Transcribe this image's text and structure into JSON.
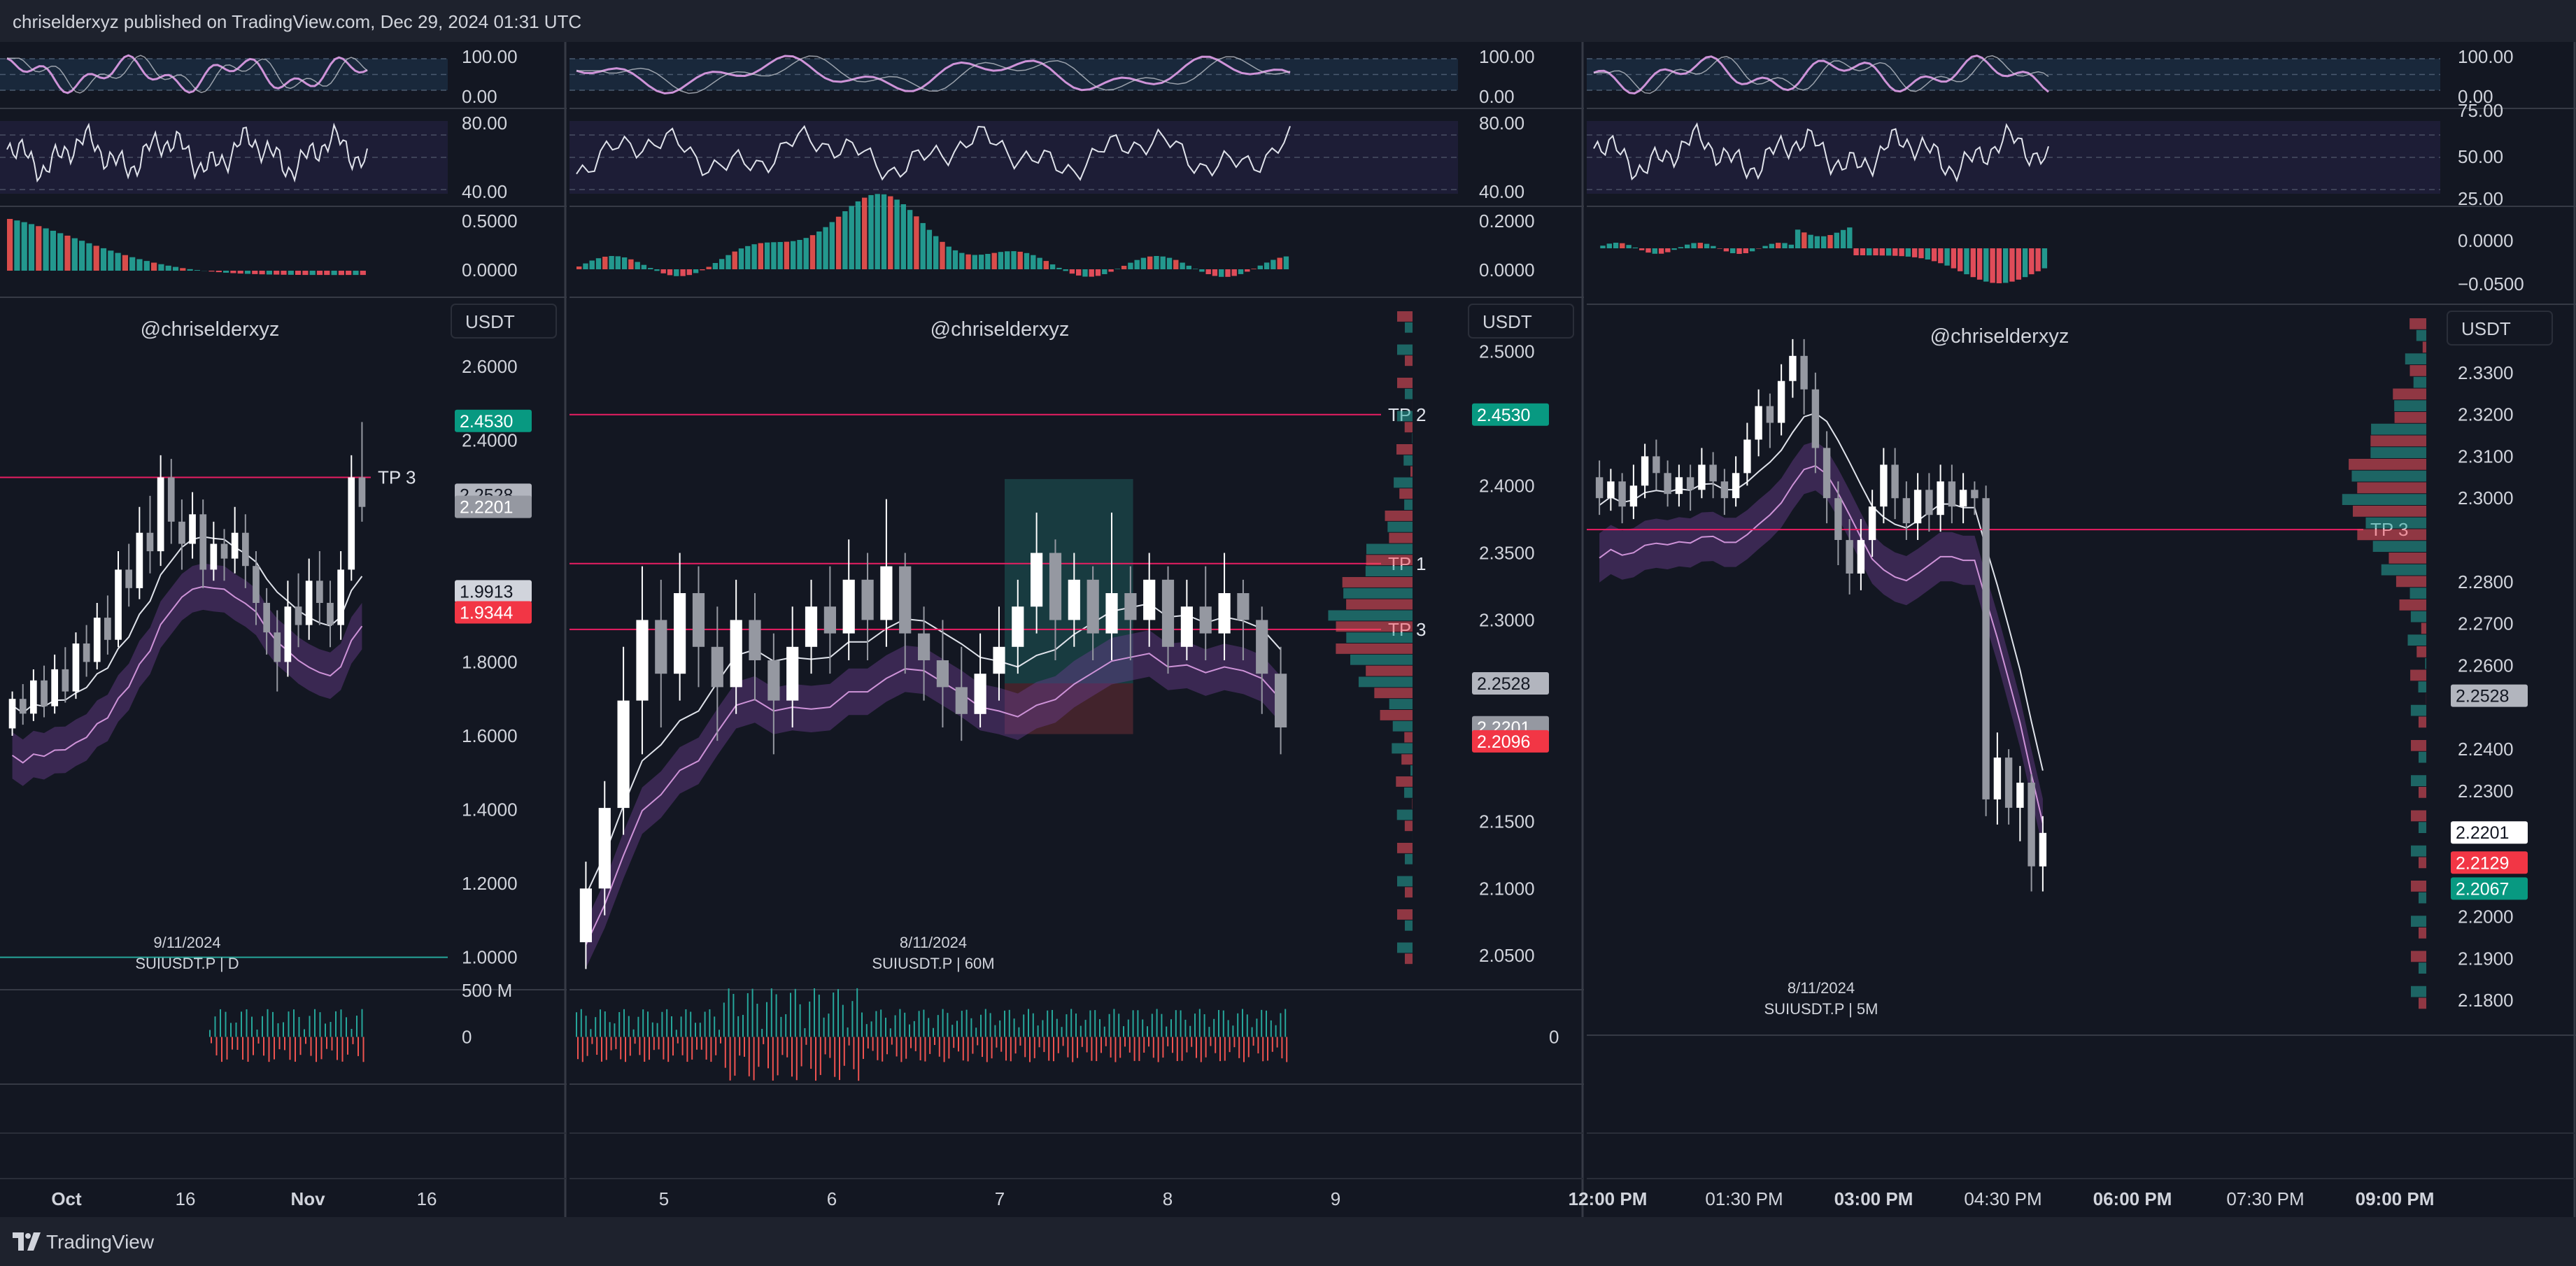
{
  "header": {
    "text": "chriselderxyz published on TradingView.com, Dec 29, 2024 01:31 UTC"
  },
  "footer": {
    "brand": "TradingView",
    "logo_icon": "tradingview-logo-icon"
  },
  "colors": {
    "background": "#131722",
    "header_bg": "#1e222d",
    "up": "#26a69a",
    "down": "#ef5350",
    "candle_white": "#ffffff",
    "candle_gray": "#9598a1",
    "tp_line": "#e91e63",
    "rsi_line": "#ce93d8",
    "band": "#6a3d8f",
    "grid": "#2a2e39",
    "text": "#d1d4dc"
  },
  "chart_data": [
    {
      "type": "candlestick",
      "symbol_label": "SUIUSDT.P | D",
      "watermark": "@chriselderxyz",
      "currency_button": "USDT",
      "date_marker": "9/11/2024",
      "x_ticks": [
        "Oct",
        "16",
        "Nov",
        "16"
      ],
      "y_ticks": [
        "2.6000",
        "2.4000",
        "1.8000",
        "1.6000",
        "1.4000",
        "1.2000",
        "1.0000"
      ],
      "ylim": [
        0.95,
        2.75
      ],
      "price_labels": [
        {
          "text": "2.4530",
          "value": 2.453,
          "color": "#089981"
        },
        {
          "text": "2.2528",
          "value": 2.2528,
          "color": "#b2b5be"
        },
        {
          "text": "2.2201",
          "value": 2.2201,
          "color": "#9598a1"
        },
        {
          "text": "1.9913",
          "value": 1.9913,
          "color": "#d1d4dc"
        },
        {
          "text": "1.9344",
          "value": 1.9344,
          "color": "#f23645"
        }
      ],
      "hlines": [
        {
          "label": "TP 3",
          "value": 2.3,
          "color": "#e91e63"
        },
        {
          "label": "",
          "value": 1.0,
          "color": "#26a69a"
        }
      ],
      "candles": [
        [
          1.62,
          1.7,
          1.6,
          1.72
        ],
        [
          1.7,
          1.66,
          1.63,
          1.74
        ],
        [
          1.66,
          1.75,
          1.64,
          1.78
        ],
        [
          1.75,
          1.68,
          1.65,
          1.79
        ],
        [
          1.68,
          1.78,
          1.66,
          1.82
        ],
        [
          1.78,
          1.72,
          1.69,
          1.84
        ],
        [
          1.72,
          1.85,
          1.7,
          1.88
        ],
        [
          1.85,
          1.8,
          1.76,
          1.9
        ],
        [
          1.8,
          1.92,
          1.78,
          1.96
        ],
        [
          1.92,
          1.86,
          1.82,
          1.98
        ],
        [
          1.86,
          2.05,
          1.84,
          2.1
        ],
        [
          2.05,
          2.0,
          1.95,
          2.12
        ],
        [
          2.0,
          2.15,
          1.97,
          2.22
        ],
        [
          2.15,
          2.1,
          2.04,
          2.25
        ],
        [
          2.1,
          2.3,
          2.06,
          2.36
        ],
        [
          2.3,
          2.18,
          2.12,
          2.35
        ],
        [
          2.18,
          2.12,
          2.05,
          2.24
        ],
        [
          2.12,
          2.2,
          2.08,
          2.26
        ],
        [
          2.2,
          2.05,
          2.0,
          2.24
        ],
        [
          2.05,
          2.12,
          2.02,
          2.18
        ],
        [
          2.12,
          2.08,
          2.02,
          2.16
        ],
        [
          2.08,
          2.15,
          2.04,
          2.22
        ],
        [
          2.15,
          2.06,
          2.0,
          2.2
        ],
        [
          2.06,
          1.96,
          1.9,
          2.1
        ],
        [
          1.96,
          1.88,
          1.82,
          2.0
        ],
        [
          1.88,
          1.8,
          1.72,
          1.94
        ],
        [
          1.8,
          1.95,
          1.76,
          2.02
        ],
        [
          1.95,
          1.9,
          1.84,
          2.04
        ],
        [
          1.9,
          2.02,
          1.86,
          2.08
        ],
        [
          2.02,
          1.96,
          1.9,
          2.1
        ],
        [
          1.96,
          1.9,
          1.84,
          2.02
        ],
        [
          1.9,
          2.05,
          1.86,
          2.1
        ],
        [
          2.05,
          2.3,
          2.02,
          2.36
        ],
        [
          2.3,
          2.22,
          2.18,
          2.45
        ]
      ],
      "indicator_ticks": {
        "rsi": [
          "100.00",
          "0.00"
        ],
        "stoch": [
          "80.00",
          "40.00"
        ],
        "macd": [
          "0.5000",
          "0.0000"
        ],
        "volume": [
          "500 M",
          "0"
        ]
      }
    },
    {
      "type": "candlestick",
      "symbol_label": "SUIUSDT.P | 60M",
      "watermark": "@chriselderxyz",
      "currency_button": "USDT",
      "date_marker": "8/11/2024",
      "x_ticks": [
        "5",
        "6",
        "7",
        "8",
        "9"
      ],
      "y_ticks": [
        "2.5000",
        "2.4000",
        "2.3500",
        "2.3000",
        "2.1500",
        "2.1000",
        "2.0500"
      ],
      "ylim": [
        2.035,
        2.53
      ],
      "price_labels": [
        {
          "text": "2.4530",
          "value": 2.453,
          "color": "#089981"
        },
        {
          "text": "2.2528",
          "value": 2.2528,
          "color": "#b2b5be"
        },
        {
          "text": "2.2201",
          "value": 2.2201,
          "color": "#9598a1"
        },
        {
          "text": "2.2096",
          "value": 2.2096,
          "color": "#f23645"
        }
      ],
      "hlines": [
        {
          "label": "TP 2",
          "value": 2.453,
          "color": "#e91e63"
        },
        {
          "label": "TP 1",
          "value": 2.342,
          "color": "#e91e63"
        },
        {
          "label": "TP 3",
          "value": 2.293,
          "color": "#e91e63"
        }
      ],
      "position": {
        "entry": 2.2528,
        "target": 2.405,
        "stop": 2.215
      },
      "candles": [
        [
          2.06,
          2.1,
          2.04,
          2.12
        ],
        [
          2.1,
          2.16,
          2.08,
          2.18
        ],
        [
          2.16,
          2.24,
          2.14,
          2.28
        ],
        [
          2.24,
          2.3,
          2.2,
          2.34
        ],
        [
          2.3,
          2.26,
          2.22,
          2.33
        ],
        [
          2.26,
          2.32,
          2.24,
          2.35
        ],
        [
          2.32,
          2.28,
          2.25,
          2.34
        ],
        [
          2.28,
          2.25,
          2.21,
          2.31
        ],
        [
          2.25,
          2.3,
          2.23,
          2.33
        ],
        [
          2.3,
          2.27,
          2.24,
          2.32
        ],
        [
          2.27,
          2.24,
          2.2,
          2.29
        ],
        [
          2.24,
          2.28,
          2.22,
          2.31
        ],
        [
          2.28,
          2.31,
          2.26,
          2.33
        ],
        [
          2.31,
          2.29,
          2.26,
          2.34
        ],
        [
          2.29,
          2.33,
          2.27,
          2.36
        ],
        [
          2.33,
          2.3,
          2.27,
          2.35
        ],
        [
          2.3,
          2.34,
          2.28,
          2.39
        ],
        [
          2.34,
          2.29,
          2.26,
          2.35
        ],
        [
          2.29,
          2.27,
          2.24,
          2.31
        ],
        [
          2.27,
          2.25,
          2.22,
          2.3
        ],
        [
          2.25,
          2.23,
          2.21,
          2.28
        ],
        [
          2.23,
          2.26,
          2.22,
          2.29
        ],
        [
          2.26,
          2.28,
          2.24,
          2.31
        ],
        [
          2.28,
          2.31,
          2.26,
          2.33
        ],
        [
          2.31,
          2.35,
          2.29,
          2.38
        ],
        [
          2.35,
          2.3,
          2.27,
          2.36
        ],
        [
          2.3,
          2.33,
          2.28,
          2.35
        ],
        [
          2.33,
          2.29,
          2.27,
          2.34
        ],
        [
          2.29,
          2.32,
          2.27,
          2.38
        ],
        [
          2.32,
          2.3,
          2.27,
          2.34
        ],
        [
          2.3,
          2.33,
          2.28,
          2.35
        ],
        [
          2.33,
          2.28,
          2.26,
          2.34
        ],
        [
          2.28,
          2.31,
          2.27,
          2.33
        ],
        [
          2.31,
          2.29,
          2.27,
          2.34
        ],
        [
          2.29,
          2.32,
          2.27,
          2.35
        ],
        [
          2.32,
          2.3,
          2.27,
          2.33
        ],
        [
          2.3,
          2.26,
          2.23,
          2.31
        ],
        [
          2.26,
          2.22,
          2.2,
          2.28
        ]
      ],
      "indicator_ticks": {
        "rsi": [
          "100.00",
          "0.00"
        ],
        "stoch": [
          "80.00",
          "40.00"
        ],
        "macd": [
          "0.2000",
          "0.0000"
        ],
        "volume": [
          "0"
        ]
      }
    },
    {
      "type": "candlestick",
      "symbol_label": "SUIUSDT.P | 5M",
      "watermark": "@chriselderxyz",
      "currency_button": "USDT",
      "date_marker": "8/11/2024",
      "x_ticks": [
        "12:00 PM",
        "01:30 PM",
        "03:00 PM",
        "04:30 PM",
        "06:00 PM",
        "07:30 PM",
        "09:00 PM"
      ],
      "y_ticks": [
        "2.3300",
        "2.3200",
        "2.3100",
        "2.3000",
        "2.2800",
        "2.2700",
        "2.2600",
        "2.2400",
        "2.2300",
        "2.2000",
        "2.1900",
        "2.1800"
      ],
      "ylim": [
        2.175,
        2.343
      ],
      "price_labels": [
        {
          "text": "2.2528",
          "value": 2.2528,
          "color": "#b2b5be"
        },
        {
          "text": "2.2201",
          "value": 2.2201,
          "color": "#ffffff"
        },
        {
          "text": "2.2129",
          "value": 2.2129,
          "color": "#f23645"
        },
        {
          "text": "2.2067",
          "value": 2.2067,
          "color": "#089981"
        }
      ],
      "hlines": [
        {
          "label": "TP 3",
          "value": 2.2925,
          "color": "#e91e63"
        }
      ],
      "candles": [
        [
          2.305,
          2.3,
          2.296,
          2.309
        ],
        [
          2.3,
          2.304,
          2.297,
          2.307
        ],
        [
          2.304,
          2.298,
          2.294,
          2.306
        ],
        [
          2.298,
          2.303,
          2.295,
          2.308
        ],
        [
          2.303,
          2.31,
          2.3,
          2.313
        ],
        [
          2.31,
          2.306,
          2.302,
          2.314
        ],
        [
          2.306,
          2.301,
          2.298,
          2.309
        ],
        [
          2.301,
          2.305,
          2.298,
          2.308
        ],
        [
          2.305,
          2.302,
          2.297,
          2.308
        ],
        [
          2.302,
          2.308,
          2.3,
          2.312
        ],
        [
          2.308,
          2.304,
          2.3,
          2.311
        ],
        [
          2.304,
          2.3,
          2.296,
          2.307
        ],
        [
          2.3,
          2.306,
          2.298,
          2.31
        ],
        [
          2.306,
          2.314,
          2.303,
          2.318
        ],
        [
          2.314,
          2.322,
          2.31,
          2.326
        ],
        [
          2.322,
          2.318,
          2.312,
          2.325
        ],
        [
          2.318,
          2.328,
          2.315,
          2.332
        ],
        [
          2.328,
          2.334,
          2.324,
          2.338
        ],
        [
          2.334,
          2.326,
          2.32,
          2.338
        ],
        [
          2.326,
          2.312,
          2.306,
          2.33
        ],
        [
          2.312,
          2.3,
          2.294,
          2.316
        ],
        [
          2.3,
          2.29,
          2.284,
          2.304
        ],
        [
          2.29,
          2.282,
          2.277,
          2.295
        ],
        [
          2.282,
          2.29,
          2.278,
          2.295
        ],
        [
          2.29,
          2.298,
          2.286,
          2.302
        ],
        [
          2.298,
          2.308,
          2.294,
          2.312
        ],
        [
          2.308,
          2.3,
          2.295,
          2.312
        ],
        [
          2.3,
          2.294,
          2.29,
          2.304
        ],
        [
          2.294,
          2.302,
          2.29,
          2.306
        ],
        [
          2.302,
          2.296,
          2.292,
          2.306
        ],
        [
          2.296,
          2.304,
          2.292,
          2.308
        ],
        [
          2.304,
          2.298,
          2.294,
          2.308
        ],
        [
          2.298,
          2.302,
          2.294,
          2.306
        ],
        [
          2.302,
          2.3,
          2.296,
          2.304
        ],
        [
          2.3,
          2.228,
          2.224,
          2.303
        ],
        [
          2.228,
          2.238,
          2.222,
          2.244
        ],
        [
          2.238,
          2.226,
          2.222,
          2.24
        ],
        [
          2.226,
          2.232,
          2.218,
          2.236
        ],
        [
          2.232,
          2.212,
          2.206,
          2.234
        ],
        [
          2.212,
          2.22,
          2.206,
          2.224
        ]
      ],
      "indicator_ticks": {
        "rsi": [
          "100.00",
          "0.00"
        ],
        "stoch": [
          "75.00",
          "50.00",
          "25.00"
        ],
        "macd": [
          "0.0000",
          "−0.0500"
        ]
      }
    }
  ]
}
